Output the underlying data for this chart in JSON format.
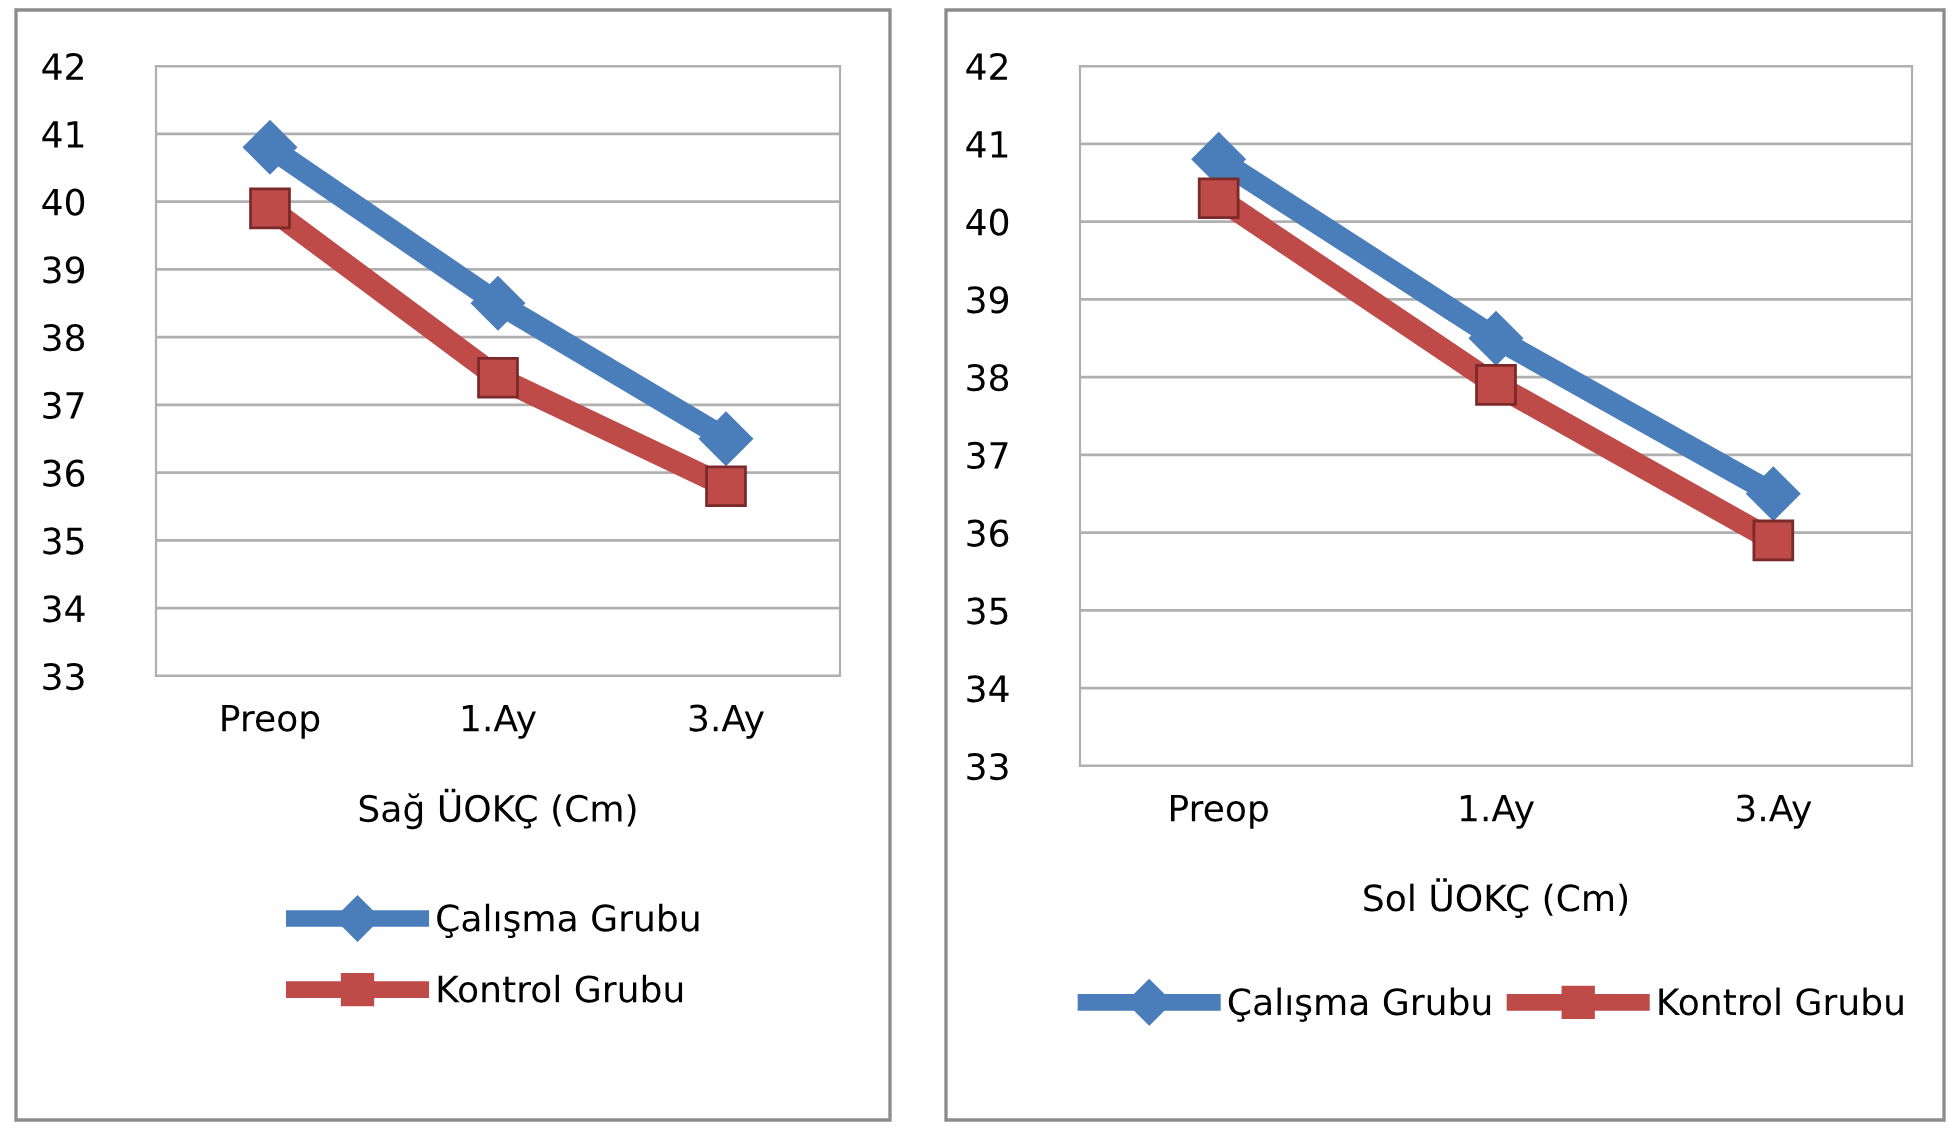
{
  "chart_data": [
    {
      "type": "line",
      "xlabel": "Sağ ÜOKÇ (Cm)",
      "categories": [
        "Preop",
        "1.Ay",
        "3.Ay"
      ],
      "series": [
        {
          "name": "Çalışma Grubu",
          "color": "#4a7ebb",
          "marker": "diamond",
          "values": [
            40.8,
            38.5,
            36.5
          ]
        },
        {
          "name": "Kontrol Grubu",
          "color": "#be4b48",
          "marker": "square",
          "values": [
            39.9,
            37.4,
            35.8
          ]
        }
      ],
      "ylim": [
        33,
        42
      ],
      "yticks": [
        33,
        34,
        35,
        36,
        37,
        38,
        39,
        40,
        41,
        42
      ],
      "grid": "y",
      "legend": "bottom"
    },
    {
      "type": "line",
      "xlabel": "Sol ÜOKÇ (Cm)",
      "categories": [
        "Preop",
        "1.Ay",
        "3.Ay"
      ],
      "series": [
        {
          "name": "Çalışma Grubu",
          "color": "#4a7ebb",
          "marker": "diamond",
          "values": [
            40.8,
            38.5,
            36.5
          ]
        },
        {
          "name": "Kontrol Grubu",
          "color": "#be4b48",
          "marker": "square",
          "values": [
            40.3,
            37.9,
            35.9
          ]
        }
      ],
      "ylim": [
        33,
        42
      ],
      "yticks": [
        33,
        34,
        35,
        36,
        37,
        38,
        39,
        40,
        41,
        42
      ],
      "grid": "y",
      "legend": "bottom"
    }
  ]
}
